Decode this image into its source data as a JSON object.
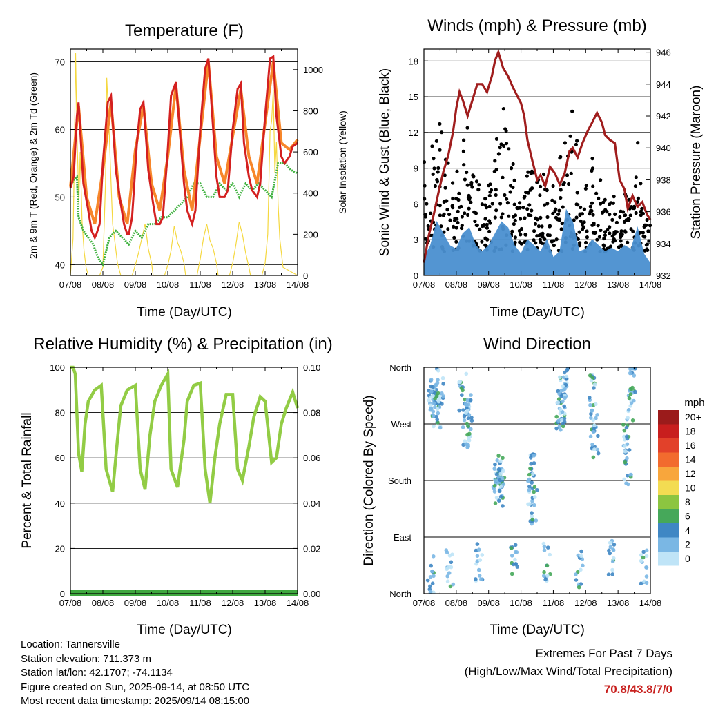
{
  "panels": {
    "temperature": {
      "title": "Temperature (F)",
      "ylabel_left": "2m & 9m T (Red, Orange) & 2m Td (Green)",
      "ylabel_right": "Solar Insolation (Yellow)",
      "xlabel": "Time (Day/UTC)"
    },
    "winds": {
      "title": "Winds (mph) & Pressure (mb)",
      "ylabel_left": "Sonic Wind & Gust (Blue, Black)",
      "ylabel_right": "Station Pressure (Maroon)",
      "xlabel": "Time (Day/UTC)"
    },
    "humidity": {
      "title": "Relative Humidity (%) & Precipitation (in)",
      "ylabel_left": "Percent & Total Rainfall",
      "xlabel": "Time (Day/UTC)"
    },
    "direction": {
      "title": "Wind Direction",
      "ylabel_left": "Direction (Colored By Speed)",
      "xlabel": "Time (Day/UTC)",
      "legend_title": "mph"
    }
  },
  "colors": {
    "temp2m": "#d42020",
    "temp9m": "#f7862a",
    "dewpoint": "#3fb23f",
    "solar": "#f5d840",
    "wind": "#4a90d0",
    "gust": "#000000",
    "pressure": "#a01d1d",
    "rh": "#92cc45",
    "precip": "#3fa83f"
  },
  "info": {
    "location": "Location: Tannersville",
    "elevation": "Station elevation: 711.373 m",
    "latlon": "Station lat/lon: 42.1707; -74.1134",
    "created": "Figure created on Sun, 2025-09-14, at 08:50 UTC",
    "recent": "Most recent data timestamp: 2025/09/14 08:15:00"
  },
  "extremes": {
    "line1": "Extremes For Past 7 Days",
    "line2": "(High/Low/Max Wind/Total Precipitation)",
    "values": "70.8/43.8/7/0"
  },
  "chart_data": [
    {
      "type": "line",
      "title": "Temperature (F)",
      "xlabel": "Time (Day/UTC)",
      "ylabel": "2m & 9m T (Red, Orange) & 2m Td (Green)",
      "y2label": "Solar Insolation (Yellow)",
      "xticks": [
        "07/08",
        "08/08",
        "09/08",
        "10/08",
        "11/08",
        "12/08",
        "13/08",
        "14/08"
      ],
      "xlim": [
        0,
        7
      ],
      "ylim": [
        38.4,
        71.9
      ],
      "y2lim": [
        0,
        1100
      ],
      "yticks": [
        40,
        50,
        60,
        70
      ],
      "y2ticks": [
        0,
        200,
        400,
        600,
        800,
        1000
      ],
      "grid": true,
      "series": [
        {
          "name": "2m T",
          "axis": "left",
          "x": [
            0,
            0.1,
            0.2,
            0.25,
            0.4,
            0.55,
            0.65,
            0.75,
            0.8,
            0.9,
            1.0,
            1.15,
            1.25,
            1.4,
            1.55,
            1.65,
            1.75,
            1.8,
            1.9,
            2.05,
            2.15,
            2.25,
            2.4,
            2.55,
            2.65,
            2.75,
            2.85,
            3.0,
            3.1,
            3.25,
            3.4,
            3.5,
            3.6,
            3.75,
            3.85,
            4.0,
            4.15,
            4.25,
            4.4,
            4.5,
            4.6,
            4.75,
            4.85,
            5.0,
            5.15,
            5.25,
            5.35,
            5.5,
            5.6,
            5.75,
            5.85,
            6.0,
            6.15,
            6.25,
            6.35,
            6.5,
            6.6,
            6.75,
            6.85,
            7.0
          ],
          "y": [
            51.3,
            53,
            62,
            64,
            52,
            48,
            45,
            44,
            44.5,
            46,
            55,
            64,
            65,
            54,
            49,
            46,
            44.5,
            44.5,
            47,
            58,
            63,
            64,
            54,
            49,
            46,
            46,
            47,
            57,
            65,
            67,
            58,
            52,
            48,
            46,
            48,
            60,
            69,
            70.5,
            60,
            53,
            50,
            50,
            51,
            60,
            66,
            66.8,
            58,
            53,
            51,
            50,
            52,
            62,
            70.5,
            70.8,
            62,
            56,
            55,
            56,
            57.5,
            58
          ]
        },
        {
          "name": "9m T",
          "axis": "left",
          "x": [
            0,
            0.25,
            0.5,
            0.75,
            1.0,
            1.25,
            1.5,
            1.75,
            2.0,
            2.25,
            2.5,
            2.75,
            3.0,
            3.25,
            3.5,
            3.75,
            4.0,
            4.25,
            4.5,
            4.75,
            5.0,
            5.25,
            5.5,
            5.75,
            6.0,
            6.25,
            6.5,
            6.75,
            7.0
          ],
          "y": [
            51.5,
            63.5,
            50,
            46,
            54,
            64,
            50,
            46,
            57,
            63.5,
            52,
            48,
            56,
            66.5,
            54,
            48,
            59,
            70,
            56,
            52,
            59,
            66,
            56,
            52,
            61,
            70,
            58,
            57,
            58.5
          ]
        },
        {
          "name": "2m Td",
          "axis": "left",
          "x": [
            0,
            0.1,
            0.2,
            0.25,
            0.4,
            0.55,
            0.7,
            0.85,
            1.0,
            1.2,
            1.4,
            1.6,
            1.8,
            2.0,
            2.2,
            2.4,
            2.6,
            2.8,
            3.0,
            3.2,
            3.4,
            3.6,
            3.8,
            4.0,
            4.2,
            4.4,
            4.6,
            4.8,
            5.0,
            5.2,
            5.4,
            5.6,
            5.8,
            6.0,
            6.2,
            6.4,
            6.6,
            6.8,
            7.0
          ],
          "y": [
            51.5,
            52.5,
            53,
            47,
            45,
            44,
            43,
            41,
            40,
            44,
            45,
            44,
            43,
            45,
            44,
            46,
            46,
            47,
            47,
            48,
            49,
            50,
            52,
            52,
            50,
            50,
            52,
            51,
            52,
            50,
            52,
            51,
            52,
            51,
            50,
            55,
            55,
            54,
            53.5
          ]
        },
        {
          "name": "Solar",
          "axis": "right",
          "x": [
            0,
            0.08,
            0.12,
            0.16,
            0.2,
            0.26,
            0.3,
            0.36,
            0.42,
            0.48,
            0.55,
            0.9,
            1.0,
            1.08,
            1.12,
            1.18,
            1.24,
            1.3,
            1.38,
            1.45,
            1.55,
            1.9,
            2.0,
            2.1,
            2.2,
            2.3,
            2.4,
            2.5,
            2.55,
            2.9,
            3.0,
            3.1,
            3.2,
            3.3,
            3.4,
            3.5,
            3.55,
            3.9,
            4.0,
            4.1,
            4.2,
            4.3,
            4.4,
            4.5,
            4.55,
            4.9,
            5.0,
            5.1,
            5.2,
            5.3,
            5.4,
            5.5,
            5.55,
            5.9,
            6.0,
            6.08,
            6.15,
            6.2,
            6.25,
            6.3,
            6.35,
            6.4,
            6.45,
            6.55,
            7.0
          ],
          "y": [
            0,
            180,
            560,
            1080,
            700,
            350,
            600,
            260,
            120,
            40,
            0,
            0,
            40,
            450,
            960,
            760,
            500,
            250,
            150,
            60,
            0,
            0,
            50,
            110,
            180,
            250,
            130,
            60,
            0,
            0,
            50,
            120,
            240,
            160,
            120,
            60,
            0,
            0,
            80,
            180,
            250,
            170,
            130,
            60,
            0,
            0,
            60,
            150,
            260,
            200,
            110,
            40,
            0,
            0,
            60,
            200,
            700,
            750,
            900,
            500,
            650,
            350,
            180,
            40,
            0
          ]
        }
      ]
    },
    {
      "type": "scatter",
      "title": "Winds (mph) & Pressure (mb)",
      "xlabel": "Time (Day/UTC)",
      "ylabel": "Sonic Wind & Gust (Blue, Black)",
      "y2label": "Station Pressure (Maroon)",
      "xticks": [
        "07/08",
        "08/08",
        "09/08",
        "10/08",
        "11/08",
        "12/08",
        "13/08",
        "14/08"
      ],
      "xlim": [
        0,
        7
      ],
      "ylim": [
        0,
        19
      ],
      "y2lim": [
        932,
        946.2
      ],
      "yticks": [
        0,
        3,
        6,
        9,
        12,
        15,
        18
      ],
      "y2ticks": [
        932,
        934,
        936,
        938,
        940,
        942,
        944,
        946
      ],
      "grid": true,
      "series": [
        {
          "name": "Pressure",
          "axis": "right",
          "type": "line",
          "x": [
            0,
            0.15,
            0.3,
            0.45,
            0.6,
            0.75,
            0.9,
            1.0,
            1.1,
            1.2,
            1.35,
            1.5,
            1.65,
            1.8,
            1.95,
            2.1,
            2.2,
            2.3,
            2.45,
            2.6,
            2.75,
            2.9,
            3.0,
            3.1,
            3.2,
            3.35,
            3.5,
            3.6,
            3.75,
            3.9,
            4.05,
            4.2,
            4.35,
            4.5,
            4.6,
            4.75,
            4.9,
            5.05,
            5.2,
            5.35,
            5.5,
            5.6,
            5.75,
            5.9,
            6.05,
            6.2,
            6.3,
            6.45,
            6.6,
            6.75,
            6.9,
            7.0
          ],
          "y": [
            932.8,
            934.5,
            935.8,
            937.2,
            938.5,
            939.5,
            941,
            942.5,
            943.5,
            943,
            942,
            943,
            944,
            944,
            943.5,
            944.5,
            945.5,
            946,
            945,
            944.5,
            943.8,
            943.2,
            942.8,
            942,
            940.5,
            939.2,
            938,
            938.3,
            937.6,
            938.8,
            938.4,
            937.7,
            938.4,
            939.8,
            940,
            939.4,
            940.3,
            941,
            941.6,
            942.2,
            941.6,
            940.8,
            940.5,
            940.3,
            938,
            937.4,
            936.2,
            937,
            936.3,
            936.6,
            935.8,
            935.5
          ]
        },
        {
          "name": "Wind",
          "axis": "left",
          "type": "area",
          "x": [
            0,
            0.2,
            0.4,
            0.6,
            0.8,
            1.0,
            1.2,
            1.4,
            1.6,
            1.8,
            2.0,
            2.2,
            2.4,
            2.6,
            2.8,
            3.0,
            3.2,
            3.4,
            3.6,
            3.8,
            4.0,
            4.2,
            4.4,
            4.6,
            4.8,
            5.0,
            5.2,
            5.4,
            5.6,
            5.8,
            6.0,
            6.2,
            6.4,
            6.6,
            6.8,
            7.0
          ],
          "y": [
            1.5,
            2.5,
            4.5,
            3.5,
            2.5,
            2.2,
            3.5,
            4,
            2.5,
            2,
            2.5,
            3.5,
            4.5,
            4,
            2.5,
            1.8,
            3,
            2.5,
            2,
            3,
            1.5,
            2,
            5.5,
            4.5,
            2,
            2.2,
            3,
            2.5,
            2,
            2.3,
            2,
            2.5,
            2.2,
            4,
            1.8,
            1
          ]
        }
      ]
    },
    {
      "type": "line",
      "title": "Relative Humidity (%) & Precipitation (in)",
      "xlabel": "Time (Day/UTC)",
      "ylabel": "Percent & Total Rainfall",
      "xticks": [
        "07/08",
        "08/08",
        "09/08",
        "10/08",
        "11/08",
        "12/08",
        "13/08",
        "14/08"
      ],
      "xlim": [
        0,
        7
      ],
      "ylim": [
        0,
        100
      ],
      "y2lim": [
        0,
        0.1
      ],
      "yticks": [
        0,
        20,
        40,
        60,
        80,
        100
      ],
      "y2ticks": [
        "0.00",
        "0.02",
        "0.04",
        "0.06",
        "0.08",
        "0.10"
      ],
      "grid": true,
      "series": [
        {
          "name": "RH",
          "axis": "left",
          "x": [
            0,
            0.08,
            0.15,
            0.25,
            0.35,
            0.45,
            0.55,
            0.75,
            0.95,
            1.1,
            1.3,
            1.45,
            1.55,
            1.75,
            2.0,
            2.15,
            2.3,
            2.45,
            2.6,
            2.8,
            3.0,
            3.1,
            3.3,
            3.5,
            3.6,
            3.8,
            4.0,
            4.15,
            4.3,
            4.45,
            4.6,
            4.8,
            5.0,
            5.15,
            5.3,
            5.5,
            5.65,
            5.85,
            6.0,
            6.2,
            6.35,
            6.5,
            6.65,
            6.85,
            7.0
          ],
          "y": [
            100,
            100,
            97,
            62,
            54,
            75,
            85,
            90,
            92,
            55,
            45,
            68,
            83,
            90,
            92,
            55,
            46,
            70,
            85,
            92,
            97,
            55,
            47,
            68,
            85,
            92,
            93,
            55,
            40,
            60,
            75,
            88,
            88,
            55,
            50,
            65,
            78,
            87,
            85,
            58,
            60,
            75,
            82,
            89,
            82
          ]
        },
        {
          "name": "Precipitation",
          "axis": "right",
          "x": [
            0,
            7
          ],
          "y": [
            0,
            0
          ]
        }
      ]
    },
    {
      "type": "scatter",
      "title": "Wind Direction",
      "xlabel": "Time (Day/UTC)",
      "ylabel": "Direction (Colored By Speed)",
      "xticks": [
        "07/08",
        "08/08",
        "09/08",
        "10/08",
        "11/08",
        "12/08",
        "13/08",
        "14/08"
      ],
      "xlim": [
        0,
        7
      ],
      "yticks": [
        "North",
        "East",
        "South",
        "West",
        "North"
      ],
      "ylim": [
        0,
        360
      ],
      "grid": true,
      "legend": {
        "title": "mph",
        "position": "right",
        "labels": [
          "20+",
          "18",
          "16",
          "14",
          "12",
          "10",
          "8",
          "6",
          "4",
          "2",
          "0"
        ],
        "colors": [
          "#9b1b1b",
          "#c81e1e",
          "#e2412a",
          "#f26b2e",
          "#f8a63c",
          "#f3dc52",
          "#8cc540",
          "#46a85a",
          "#3f87c4",
          "#7ab7e4",
          "#bfe4f7"
        ]
      },
      "series": [
        {
          "name": "Direction clusters",
          "points": [
            {
              "x": 0.35,
              "y": 300
            },
            {
              "x": 0.25,
              "y": 310
            },
            {
              "x": 0.4,
              "y": 290
            },
            {
              "x": 0.3,
              "y": 320
            },
            {
              "x": 0.5,
              "y": 330
            },
            {
              "x": 1.35,
              "y": 300
            },
            {
              "x": 1.2,
              "y": 320
            },
            {
              "x": 1.4,
              "y": 280
            },
            {
              "x": 1.3,
              "y": 260
            },
            {
              "x": 2.3,
              "y": 180
            },
            {
              "x": 2.25,
              "y": 170
            },
            {
              "x": 2.35,
              "y": 190
            },
            {
              "x": 2.4,
              "y": 160
            },
            {
              "x": 3.35,
              "y": 200
            },
            {
              "x": 3.3,
              "y": 170
            },
            {
              "x": 3.4,
              "y": 140
            },
            {
              "x": 4.3,
              "y": 320
            },
            {
              "x": 4.25,
              "y": 300
            },
            {
              "x": 4.35,
              "y": 340
            },
            {
              "x": 4.2,
              "y": 280
            },
            {
              "x": 5.25,
              "y": 280
            },
            {
              "x": 5.3,
              "y": 240
            },
            {
              "x": 5.2,
              "y": 320
            },
            {
              "x": 6.3,
              "y": 200
            },
            {
              "x": 6.25,
              "y": 250
            },
            {
              "x": 6.4,
              "y": 300
            },
            {
              "x": 6.45,
              "y": 340
            },
            {
              "x": 0.2,
              "y": 30
            },
            {
              "x": 0.8,
              "y": 40
            },
            {
              "x": 1.7,
              "y": 50
            },
            {
              "x": 2.8,
              "y": 60
            },
            {
              "x": 3.8,
              "y": 50
            },
            {
              "x": 4.8,
              "y": 40
            },
            {
              "x": 5.8,
              "y": 55
            },
            {
              "x": 6.8,
              "y": 45
            }
          ]
        }
      ]
    }
  ]
}
